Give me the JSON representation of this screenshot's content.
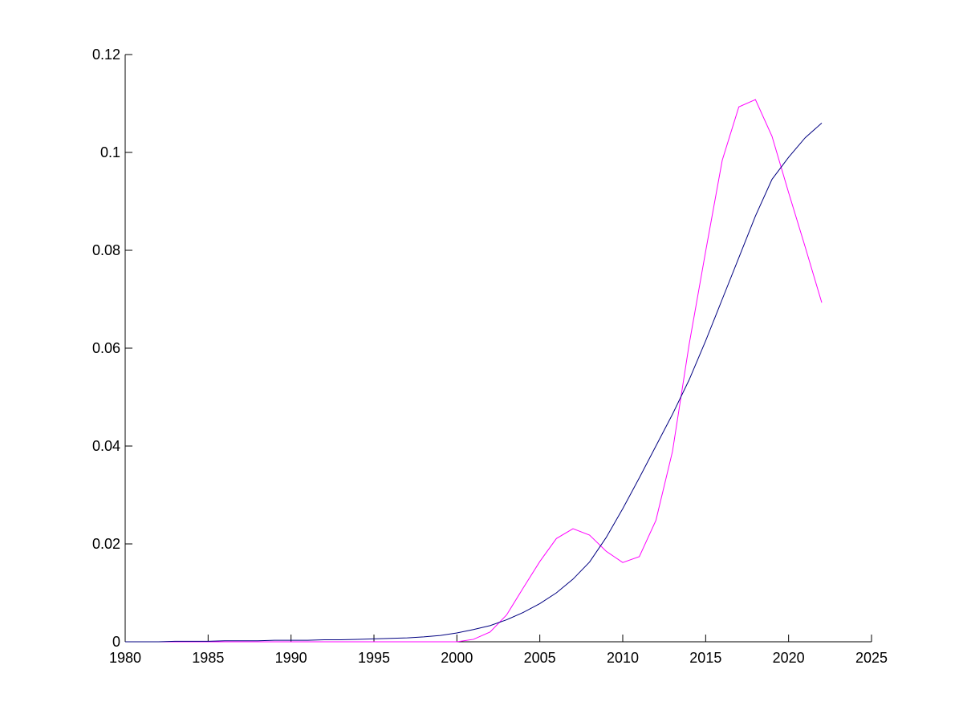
{
  "chart_data": {
    "type": "line",
    "x": [
      1980,
      1981,
      1982,
      1983,
      1984,
      1985,
      1986,
      1987,
      1988,
      1989,
      1990,
      1991,
      1992,
      1993,
      1994,
      1995,
      1996,
      1997,
      1998,
      1999,
      2000,
      2001,
      2002,
      2003,
      2004,
      2005,
      2006,
      2007,
      2008,
      2009,
      2010,
      2011,
      2012,
      2013,
      2014,
      2015,
      2016,
      2017,
      2018,
      2019,
      2020,
      2021,
      2022
    ],
    "series": [
      {
        "color": "#ff00ff",
        "values": [
          0,
          0,
          0,
          0,
          0,
          0,
          0,
          0,
          0,
          0,
          0,
          0,
          0,
          0,
          0,
          0,
          0,
          0,
          0,
          0,
          0,
          0.0005,
          0.002,
          0.0055,
          0.011,
          0.0164,
          0.0211,
          0.0231,
          0.0218,
          0.0185,
          0.0162,
          0.0174,
          0.0248,
          0.0389,
          0.0607,
          0.0798,
          0.0984,
          0.1093,
          0.1108,
          0.1033,
          0.0918,
          0.0807,
          0.0693
        ]
      },
      {
        "color": "#000080",
        "values": [
          0,
          0,
          0,
          0.0001,
          0.0001,
          0.0001,
          0.0002,
          0.0002,
          0.0002,
          0.0003,
          0.0003,
          0.0003,
          0.0004,
          0.0004,
          0.0005,
          0.0006,
          0.0007,
          0.0008,
          0.001,
          0.0013,
          0.0018,
          0.0025,
          0.0033,
          0.0045,
          0.006,
          0.0078,
          0.01,
          0.0128,
          0.0163,
          0.0213,
          0.0272,
          0.0335,
          0.04,
          0.0465,
          0.0535,
          0.0615,
          0.07,
          0.0785,
          0.087,
          0.0945,
          0.099,
          0.103,
          0.106
        ]
      }
    ],
    "xlim": [
      1980,
      2025
    ],
    "xticks": [
      1980,
      1985,
      1990,
      1995,
      2000,
      2005,
      2010,
      2015,
      2020,
      2025
    ],
    "ylim": [
      0,
      0.12
    ],
    "yticks": [
      0,
      0.02,
      0.04,
      0.06,
      0.08,
      0.1,
      0.12
    ]
  }
}
